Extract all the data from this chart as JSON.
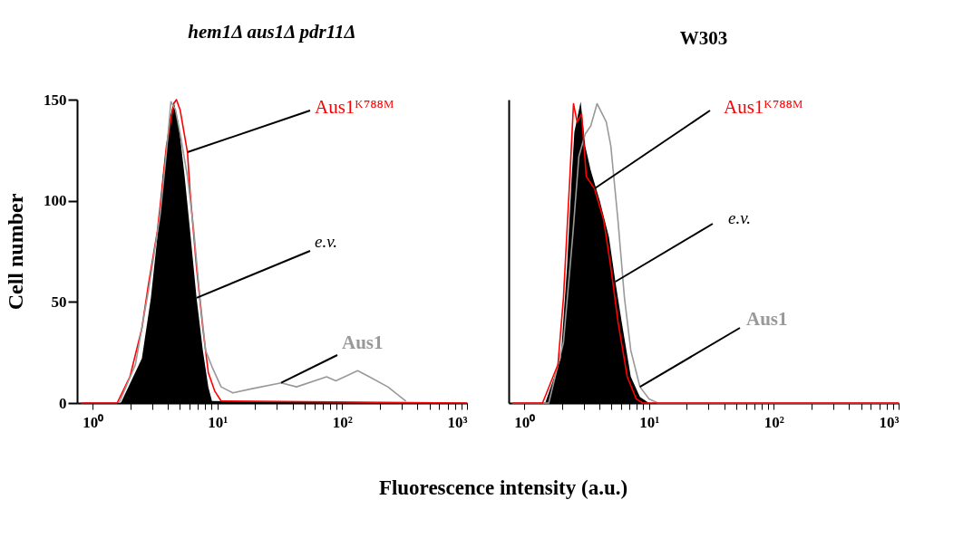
{
  "chart_data": [
    {
      "type": "line",
      "title": "hem1Δ aus1Δ pdr11Δ",
      "ylabel": "Cell number",
      "xlabel": "Fluorescence intensity (a.u.)",
      "log": "x",
      "xlim": [
        0.75,
        1000
      ],
      "ylim": [
        0,
        150
      ],
      "xticks": [
        {
          "value": 1,
          "label": "10⁰"
        },
        {
          "value": 2,
          "label": null
        },
        {
          "value": 3,
          "label": null
        },
        {
          "value": 4,
          "label": null
        },
        {
          "value": 5,
          "label": null
        },
        {
          "value": 6,
          "label": null
        },
        {
          "value": 7,
          "label": null
        },
        {
          "value": 8,
          "label": null
        },
        {
          "value": 9,
          "label": null
        },
        {
          "value": 10,
          "label": "10¹"
        },
        {
          "value": 20,
          "label": null
        },
        {
          "value": 30,
          "label": null
        },
        {
          "value": 40,
          "label": null
        },
        {
          "value": 50,
          "label": null
        },
        {
          "value": 60,
          "label": null
        },
        {
          "value": 70,
          "label": null
        },
        {
          "value": 80,
          "label": null
        },
        {
          "value": 90,
          "label": null
        },
        {
          "value": 100,
          "label": "10²"
        },
        {
          "value": 200,
          "label": null
        },
        {
          "value": 300,
          "label": null
        },
        {
          "value": 400,
          "label": null
        },
        {
          "value": 500,
          "label": null
        },
        {
          "value": 600,
          "label": null
        },
        {
          "value": 700,
          "label": null
        },
        {
          "value": 800,
          "label": null
        },
        {
          "value": 900,
          "label": null
        },
        {
          "value": 1000,
          "label": "10³"
        }
      ],
      "yticks": [
        0,
        50,
        100,
        150
      ],
      "grid": false,
      "marker": "none",
      "series": [
        {
          "name": "e.v.",
          "type": "area",
          "color": "#000000",
          "x": [
            0.8,
            1.68,
            2.48,
            2.93,
            3.3,
            3.65,
            4.1,
            4.46,
            4.86,
            5.46,
            6.04,
            6.8,
            7.64,
            8.45,
            9.04,
            1000
          ],
          "values": [
            0,
            0,
            22,
            52,
            82,
            112,
            139,
            149,
            139,
            112,
            85,
            52,
            26,
            8,
            1,
            0
          ]
        },
        {
          "name": "Aus1ᴷ⁷⁸⁸ᴹ",
          "type": "line",
          "color": "#ff0000",
          "x": [
            0.8,
            1.57,
            1.99,
            2.48,
            2.79,
            3.3,
            3.47,
            3.9,
            4.46,
            4.69,
            5.02,
            5.75,
            6.04,
            6.8,
            7.64,
            8.45,
            9.5,
            10.7,
            1000
          ],
          "values": [
            0,
            0,
            13,
            37,
            58,
            85,
            97,
            127,
            148,
            150,
            145,
            124,
            104,
            67,
            37,
            15,
            6,
            1,
            0
          ]
        },
        {
          "name": "Aus1",
          "type": "line",
          "color": "#999999",
          "x": [
            1.63,
            2.2,
            2.79,
            3.47,
            3.9,
            4.24,
            4.61,
            5.1,
            5.75,
            6.45,
            7.15,
            8.04,
            9.04,
            10.7,
            13.3,
            18.6,
            32.4,
            43.1,
            75,
            88.9,
            133,
            165,
            232,
            324
          ],
          "values": [
            0,
            19,
            55,
            93,
            124,
            149,
            145,
            131,
            112,
            86,
            55,
            26,
            18,
            8,
            5,
            7,
            10,
            8,
            13,
            11,
            16,
            13,
            8,
            1
          ]
        }
      ]
    },
    {
      "type": "line",
      "title": "W303",
      "log": "x",
      "xlim": [
        0.75,
        1000
      ],
      "ylim": [
        0,
        150
      ],
      "tick_labels": "x",
      "xticks": [
        {
          "value": 1,
          "label": "10⁰"
        },
        {
          "value": 2,
          "label": null
        },
        {
          "value": 3,
          "label": null
        },
        {
          "value": 4,
          "label": null
        },
        {
          "value": 5,
          "label": null
        },
        {
          "value": 6,
          "label": null
        },
        {
          "value": 7,
          "label": null
        },
        {
          "value": 8,
          "label": null
        },
        {
          "value": 9,
          "label": null
        },
        {
          "value": 10,
          "label": "10¹"
        },
        {
          "value": 20,
          "label": null
        },
        {
          "value": 30,
          "label": null
        },
        {
          "value": 40,
          "label": null
        },
        {
          "value": 50,
          "label": null
        },
        {
          "value": 60,
          "label": null
        },
        {
          "value": 70,
          "label": null
        },
        {
          "value": 80,
          "label": null
        },
        {
          "value": 90,
          "label": null
        },
        {
          "value": 100,
          "label": "10²"
        },
        {
          "value": 200,
          "label": null
        },
        {
          "value": 300,
          "label": null
        },
        {
          "value": 400,
          "label": null
        },
        {
          "value": 500,
          "label": null
        },
        {
          "value": 600,
          "label": null
        },
        {
          "value": 700,
          "label": null
        },
        {
          "value": 800,
          "label": null
        },
        {
          "value": 900,
          "label": null
        },
        {
          "value": 1000,
          "label": "10³"
        }
      ],
      "grid": false,
      "marker": "none",
      "series": [
        {
          "name": "e.v.",
          "type": "area",
          "color": "#000000",
          "x": [
            0.8,
            1.47,
            1.96,
            2.2,
            2.4,
            2.52,
            2.83,
            3.08,
            3.41,
            4.03,
            4.77,
            5.37,
            6.04,
            7.14,
            8.45,
            10.0,
            1000
          ],
          "values": [
            0,
            0,
            22,
            67,
            112,
            134,
            149,
            127,
            115,
            100,
            82,
            60,
            40,
            13,
            3,
            0,
            0
          ]
        },
        {
          "name": "Aus1",
          "type": "line",
          "color": "#999999",
          "x": [
            0.8,
            1.57,
            2.06,
            2.44,
            2.74,
            3.08,
            3.41,
            3.83,
            4.54,
            4.94,
            5.64,
            6.35,
            7.14,
            8.45,
            10.0,
            11.8,
            1000
          ],
          "values": [
            0,
            0,
            30,
            82,
            122,
            133,
            137,
            148,
            139,
            127,
            90,
            52,
            26,
            8,
            2,
            0,
            0
          ]
        },
        {
          "name": "Aus1ᴷ⁷⁸⁸ᴹ",
          "type": "line",
          "color": "#ff0000",
          "x": [
            0.8,
            1.4,
            1.86,
            2.06,
            2.32,
            2.48,
            2.65,
            2.88,
            3.14,
            3.65,
            4.31,
            4.94,
            5.64,
            6.68,
            7.9,
            8.9,
            1000
          ],
          "values": [
            0,
            0,
            19,
            52,
            112,
            148,
            139,
            143,
            112,
            106,
            91,
            67,
            40,
            13,
            2,
            0,
            0
          ]
        }
      ]
    }
  ]
}
